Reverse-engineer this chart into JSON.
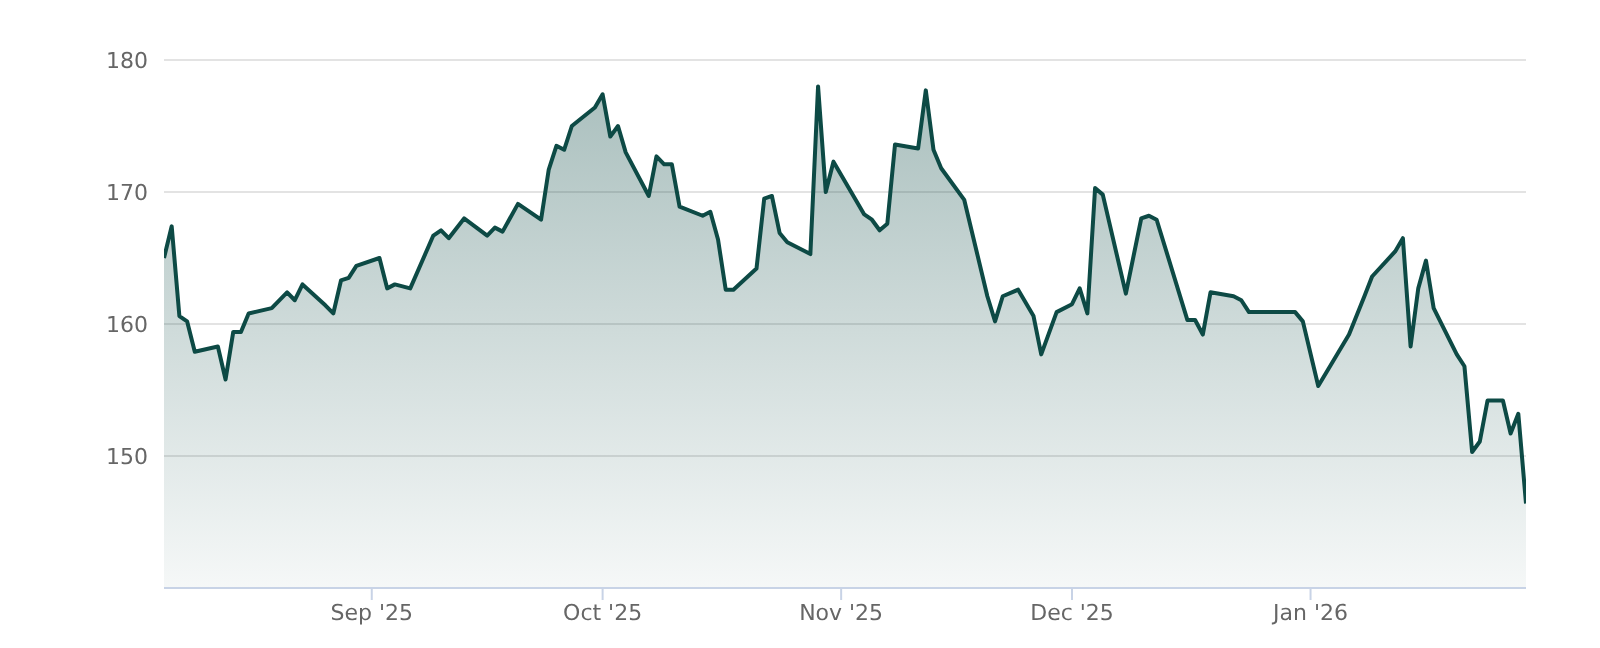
{
  "chart_data": {
    "type": "area",
    "x": [
      "2025-08-05",
      "2025-08-06",
      "2025-08-07",
      "2025-08-08",
      "2025-08-09",
      "2025-08-12",
      "2025-08-13",
      "2025-08-14",
      "2025-08-15",
      "2025-08-16",
      "2025-08-19",
      "2025-08-21",
      "2025-08-22",
      "2025-08-23",
      "2025-08-26",
      "2025-08-27",
      "2025-08-28",
      "2025-08-29",
      "2025-08-30",
      "2025-09-02",
      "2025-09-03",
      "2025-09-04",
      "2025-09-06",
      "2025-09-09",
      "2025-09-10",
      "2025-09-11",
      "2025-09-13",
      "2025-09-16",
      "2025-09-17",
      "2025-09-18",
      "2025-09-20",
      "2025-09-23",
      "2025-09-24",
      "2025-09-25",
      "2025-09-26",
      "2025-09-27",
      "2025-09-30",
      "2025-10-01",
      "2025-10-02",
      "2025-10-03",
      "2025-10-04",
      "2025-10-07",
      "2025-10-08",
      "2025-10-09",
      "2025-10-10",
      "2025-10-11",
      "2025-10-14",
      "2025-10-15",
      "2025-10-16",
      "2025-10-17",
      "2025-10-18",
      "2025-10-21",
      "2025-10-22",
      "2025-10-23",
      "2025-10-24",
      "2025-10-25",
      "2025-10-28",
      "2025-10-29",
      "2025-10-30",
      "2025-10-31",
      "2025-11-04",
      "2025-11-05",
      "2025-11-06",
      "2025-11-07",
      "2025-11-08",
      "2025-11-11",
      "2025-11-12",
      "2025-11-13",
      "2025-11-14",
      "2025-11-17",
      "2025-11-20",
      "2025-11-21",
      "2025-11-22",
      "2025-11-24",
      "2025-11-26",
      "2025-11-27",
      "2025-11-29",
      "2025-12-01",
      "2025-12-02",
      "2025-12-03",
      "2025-12-04",
      "2025-12-05",
      "2025-12-08",
      "2025-12-10",
      "2025-12-11",
      "2025-12-12",
      "2025-12-16",
      "2025-12-17",
      "2025-12-18",
      "2025-12-19",
      "2025-12-22",
      "2025-12-23",
      "2025-12-24",
      "2025-12-30",
      "2025-12-31",
      "2026-01-02",
      "2026-01-06",
      "2026-01-08",
      "2026-01-09",
      "2026-01-12",
      "2026-01-13",
      "2026-01-14",
      "2026-01-15",
      "2026-01-16",
      "2026-01-17",
      "2026-01-20",
      "2026-01-21",
      "2026-01-22",
      "2026-01-23",
      "2026-01-24",
      "2026-01-26",
      "2026-01-27",
      "2026-01-28",
      "2026-01-29"
    ],
    "series": [
      {
        "color": "#0d4a45",
        "values": [
          165.0,
          167.4,
          160.6,
          160.2,
          157.9,
          158.3,
          155.8,
          159.4,
          159.4,
          160.8,
          161.2,
          162.4,
          161.8,
          163.0,
          161.4,
          160.8,
          163.3,
          163.5,
          164.4,
          165.0,
          162.7,
          163.0,
          162.7,
          166.7,
          167.1,
          166.5,
          168.0,
          166.7,
          167.3,
          167.0,
          169.1,
          167.9,
          171.7,
          173.5,
          173.2,
          175.0,
          176.4,
          177.4,
          174.2,
          175.0,
          173.0,
          169.7,
          172.7,
          172.1,
          172.1,
          168.9,
          168.2,
          168.5,
          166.4,
          162.6,
          162.6,
          164.2,
          169.5,
          169.7,
          166.9,
          166.2,
          165.3,
          178.0,
          170.0,
          172.3,
          168.3,
          167.9,
          167.1,
          167.6,
          173.6,
          173.3,
          177.7,
          173.2,
          171.8,
          169.4,
          162.1,
          160.2,
          162.1,
          162.6,
          160.6,
          157.7,
          160.9,
          161.5,
          162.7,
          160.8,
          170.3,
          169.8,
          162.3,
          168.0,
          168.2,
          167.9,
          160.3,
          160.3,
          159.2,
          162.4,
          162.1,
          161.8,
          160.9,
          160.9,
          160.2,
          155.3,
          159.2,
          162.1,
          163.6,
          165.5,
          166.5,
          158.3,
          162.7,
          164.8,
          161.2,
          157.7,
          156.8,
          150.3,
          151.1,
          154.2,
          154.2,
          151.7,
          153.2,
          146.4
        ]
      }
    ],
    "xlim": [
      "2025-08-05",
      "2026-01-29"
    ],
    "xticks": [
      {
        "value": "2025-09-01",
        "label": "Sep '25"
      },
      {
        "value": "2025-10-01",
        "label": "Oct '25"
      },
      {
        "value": "2025-11-01",
        "label": "Nov '25"
      },
      {
        "value": "2025-12-01",
        "label": "Dec '25"
      },
      {
        "value": "2026-01-01",
        "label": "Jan '26"
      }
    ],
    "ylim": [
      140,
      180
    ],
    "yticks": [
      150,
      160,
      170,
      180
    ],
    "grid": "y",
    "legend": false,
    "marker": "none",
    "line_style": "solid"
  }
}
